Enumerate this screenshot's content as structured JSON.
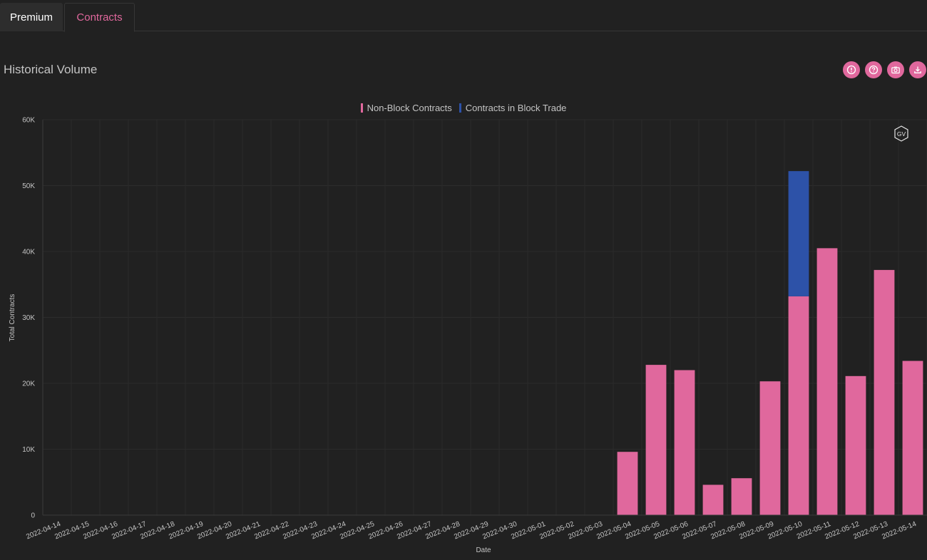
{
  "tabs": [
    {
      "label": "Premium"
    },
    {
      "label": "Contracts"
    }
  ],
  "page_title": "Historical Volume",
  "toolbar_icons": [
    "alert-icon",
    "help-icon",
    "camera-icon",
    "download-icon"
  ],
  "watermark": "GV",
  "colors": {
    "background": "#212121",
    "accent": "#e0689d",
    "non_block": "#e0689d",
    "block": "#2d52a8"
  },
  "chart_data": {
    "type": "bar",
    "stacked": true,
    "title": "",
    "xlabel": "Date",
    "ylabel": "Total Contracts",
    "ylim": [
      0,
      60000
    ],
    "yticks": [
      {
        "value": 0,
        "label": "0"
      },
      {
        "value": 10000,
        "label": "10K"
      },
      {
        "value": 20000,
        "label": "20K"
      },
      {
        "value": 30000,
        "label": "30K"
      },
      {
        "value": 40000,
        "label": "40K"
      },
      {
        "value": 50000,
        "label": "50K"
      },
      {
        "value": 60000,
        "label": "60K"
      }
    ],
    "legend_position": "top-center",
    "categories": [
      "2022-04-14",
      "2022-04-15",
      "2022-04-16",
      "2022-04-17",
      "2022-04-18",
      "2022-04-19",
      "2022-04-20",
      "2022-04-21",
      "2022-04-22",
      "2022-04-23",
      "2022-04-24",
      "2022-04-25",
      "2022-04-26",
      "2022-04-27",
      "2022-04-28",
      "2022-04-29",
      "2022-04-30",
      "2022-05-01",
      "2022-05-02",
      "2022-05-03",
      "2022-05-04",
      "2022-05-05",
      "2022-05-06",
      "2022-05-07",
      "2022-05-08",
      "2022-05-09",
      "2022-05-10",
      "2022-05-11",
      "2022-05-12",
      "2022-05-13",
      "2022-05-14"
    ],
    "series": [
      {
        "name": "Non-Block Contracts",
        "color": "#e0689d",
        "values": [
          0,
          0,
          0,
          0,
          0,
          0,
          0,
          0,
          0,
          0,
          0,
          0,
          0,
          0,
          0,
          0,
          0,
          0,
          0,
          0,
          9600,
          22800,
          22000,
          4600,
          5600,
          20300,
          33200,
          40500,
          21100,
          37200,
          23400
        ]
      },
      {
        "name": "Contracts in Block Trade",
        "color": "#2d52a8",
        "values": [
          0,
          0,
          0,
          0,
          0,
          0,
          0,
          0,
          0,
          0,
          0,
          0,
          0,
          0,
          0,
          0,
          0,
          0,
          0,
          0,
          0,
          0,
          0,
          0,
          0,
          0,
          19000,
          0,
          0,
          0,
          0
        ]
      }
    ]
  }
}
